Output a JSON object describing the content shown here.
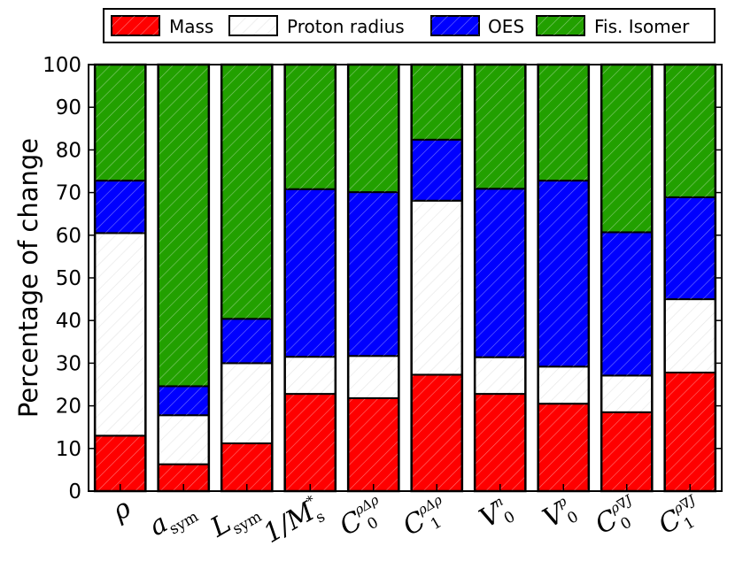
{
  "chart_data": {
    "type": "bar",
    "stacked": true,
    "ylabel": "Percentage of change",
    "xlabel": "",
    "ylim": [
      0,
      100
    ],
    "yticks": [
      "0",
      "10",
      "20",
      "30",
      "40",
      "50",
      "60",
      "70",
      "80",
      "90",
      "100"
    ],
    "legend": {
      "placement": "top",
      "entries": [
        "Mass",
        "Proton radius",
        "OES",
        "Fis. Isomer"
      ]
    },
    "categories": [
      {
        "main": "ρ",
        "sub": "",
        "sup": ""
      },
      {
        "main": "a",
        "sub": "sym",
        "sup": ""
      },
      {
        "main": "L",
        "sub": "sym",
        "sup": ""
      },
      {
        "main": "1/M",
        "sub": "s",
        "sup": "*"
      },
      {
        "main": "C",
        "sub": "0",
        "sup": "ρΔρ"
      },
      {
        "main": "C",
        "sub": "1",
        "sup": "ρΔρ"
      },
      {
        "main": "V",
        "sub": "0",
        "sup": "n"
      },
      {
        "main": "V",
        "sub": "0",
        "sup": "p"
      },
      {
        "main": "C",
        "sub": "0",
        "sup": "ρ∇J"
      },
      {
        "main": "C",
        "sub": "1",
        "sup": "ρ∇J"
      }
    ],
    "series": [
      {
        "name": "Mass",
        "color": "#ff0000",
        "values": [
          13,
          6.3,
          11.2,
          22.8,
          21.8,
          27.3,
          22.8,
          20.5,
          18.5,
          27.8
        ]
      },
      {
        "name": "Proton radius",
        "color": "#ffffff",
        "values": [
          47.5,
          11.5,
          18.8,
          8.7,
          9.9,
          40.8,
          8.6,
          8.7,
          8.6,
          17.2
        ]
      },
      {
        "name": "OES",
        "color": "#0000ff",
        "values": [
          12.3,
          6.8,
          10.4,
          39.3,
          38.4,
          14.3,
          39.5,
          43.6,
          33.6,
          23.9
        ]
      },
      {
        "name": "Fis. Isomer",
        "color": "#22a000",
        "values": [
          27.2,
          75.4,
          59.6,
          29.2,
          29.9,
          17.6,
          29.1,
          27.2,
          39.3,
          31.1
        ]
      }
    ],
    "grid": false
  }
}
